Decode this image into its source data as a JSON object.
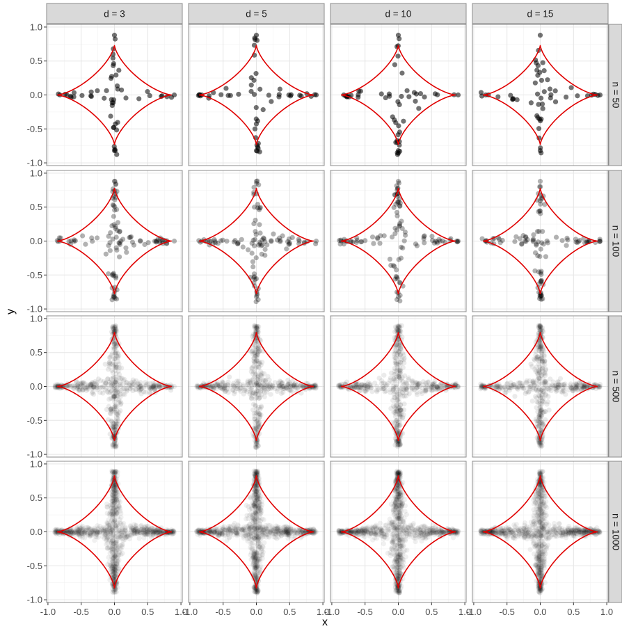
{
  "chart_data": {
    "type": "scatter",
    "xlabel": "x",
    "ylabel": "y",
    "xlim": [
      -1.02,
      1.02
    ],
    "ylim": [
      -1.04,
      1.04
    ],
    "x_ticks": [
      -1.0,
      -0.5,
      0.0,
      0.5,
      1.0
    ],
    "y_ticks": [
      -1.0,
      -0.5,
      0.0,
      0.5,
      1.0
    ],
    "x_tick_labels": [
      "-1.0",
      "-0.5",
      "0.0",
      "0.5",
      "1.0"
    ],
    "y_tick_labels": [
      "-1.0",
      "-0.5",
      "0.0",
      "0.5",
      "1.0"
    ],
    "grid": true,
    "facet_cols": [
      "d = 3",
      "d = 5",
      "d = 10",
      "d = 15"
    ],
    "facet_rows": [
      "n = 50",
      "n = 100",
      "n = 500",
      "n = 1000"
    ],
    "sample_sizes": [
      50,
      100,
      500,
      1000
    ],
    "point_opacity": [
      0.55,
      0.3,
      0.08,
      0.06
    ],
    "point_color": "#000000",
    "curve_color": "#e00000",
    "curve": {
      "shape": "four-pointed star (astroid-like) contour",
      "y_tip": [
        0.75,
        0.8,
        0.82,
        0.85
      ],
      "x_tip": 0.88,
      "arm_width": 0.2
    }
  }
}
